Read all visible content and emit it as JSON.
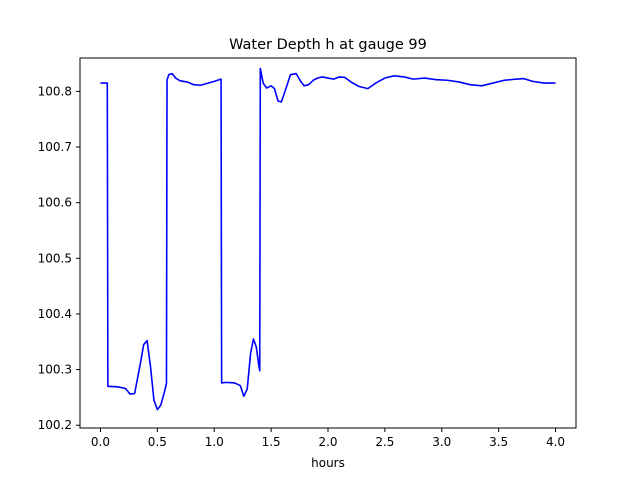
{
  "chart_data": {
    "type": "line",
    "title": "Water Depth h at gauge 99",
    "xlabel": "hours",
    "ylabel": "",
    "xlim": [
      -0.18,
      4.18
    ],
    "ylim": [
      100.195,
      100.86
    ],
    "xticks": [
      0.0,
      0.5,
      1.0,
      1.5,
      2.0,
      2.5,
      3.0,
      3.5,
      4.0
    ],
    "xtick_labels": [
      "0.0",
      "0.5",
      "1.0",
      "1.5",
      "2.0",
      "2.5",
      "3.0",
      "3.5",
      "4.0"
    ],
    "yticks": [
      100.2,
      100.3,
      100.4,
      100.5,
      100.6,
      100.7,
      100.8
    ],
    "ytick_labels": [
      "100.2",
      "100.3",
      "100.4",
      "100.5",
      "100.6",
      "100.7",
      "100.8"
    ],
    "grid": false,
    "series": [
      {
        "name": "",
        "color": "#0000ff",
        "x": [
          0.0,
          0.06,
          0.065,
          0.15,
          0.22,
          0.26,
          0.3,
          0.35,
          0.38,
          0.41,
          0.44,
          0.47,
          0.5,
          0.53,
          0.56,
          0.58,
          0.585,
          0.6,
          0.63,
          0.66,
          0.7,
          0.76,
          0.82,
          0.88,
          0.95,
          1.0,
          1.06,
          1.065,
          1.1,
          1.18,
          1.23,
          1.26,
          1.29,
          1.32,
          1.345,
          1.37,
          1.39,
          1.4,
          1.405,
          1.41,
          1.43,
          1.46,
          1.5,
          1.53,
          1.56,
          1.59,
          1.63,
          1.67,
          1.72,
          1.76,
          1.79,
          1.83,
          1.87,
          1.91,
          1.95,
          2.0,
          2.05,
          2.1,
          2.15,
          2.2,
          2.27,
          2.35,
          2.42,
          2.5,
          2.58,
          2.67,
          2.75,
          2.85,
          2.95,
          3.05,
          3.15,
          3.25,
          3.35,
          3.45,
          3.55,
          3.65,
          3.72,
          3.8,
          3.9,
          4.0
        ],
        "y": [
          100.815,
          100.815,
          100.27,
          100.269,
          100.266,
          100.256,
          100.257,
          100.31,
          100.345,
          100.352,
          100.305,
          100.245,
          100.228,
          100.236,
          100.258,
          100.275,
          100.82,
          100.83,
          100.832,
          100.824,
          100.819,
          100.817,
          100.812,
          100.811,
          100.815,
          100.818,
          100.822,
          100.276,
          100.277,
          100.276,
          100.271,
          100.252,
          100.265,
          100.33,
          100.355,
          100.34,
          100.31,
          100.298,
          100.841,
          100.836,
          100.815,
          100.806,
          100.81,
          100.805,
          100.783,
          100.781,
          100.805,
          100.83,
          100.832,
          100.818,
          100.81,
          100.812,
          100.82,
          100.824,
          100.826,
          100.824,
          100.822,
          100.826,
          100.825,
          100.817,
          100.809,
          100.805,
          100.815,
          100.824,
          100.828,
          100.826,
          100.822,
          100.824,
          100.821,
          100.82,
          100.817,
          100.812,
          100.81,
          100.815,
          100.82,
          100.822,
          100.823,
          100.818,
          100.815,
          100.815
        ]
      }
    ]
  }
}
